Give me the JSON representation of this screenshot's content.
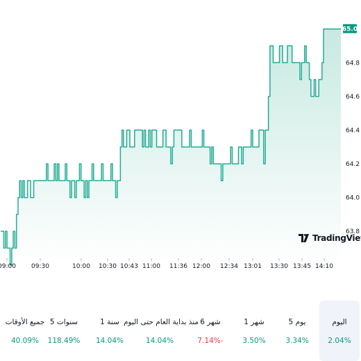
{
  "chart_data": {
    "type": "area",
    "x_ticks": [
      "09:00",
      "09:30",
      "10:00",
      "10:30",
      "10:43",
      "11:00",
      "11:36",
      "12:00",
      "12:34",
      "13:01",
      "13:30",
      "13:45",
      "14:10"
    ],
    "y_ticks": [
      "63.8",
      "64.0",
      "64.2",
      "64.4",
      "64.6",
      "64.8",
      "65.0"
    ],
    "ylim": [
      63.64,
      65.04
    ],
    "last_price": "65.0",
    "values": [
      63.8,
      63.8,
      63.7,
      63.8,
      63.7,
      63.7,
      63.6,
      63.7,
      63.8,
      63.7,
      63.9,
      64.0,
      64.1,
      64.0,
      64.1,
      64.0,
      64.0,
      64.1,
      64.1,
      64.0,
      64.0,
      64.1,
      64.1,
      64.1,
      64.1,
      64.1,
      64.1,
      64.1,
      64.1,
      64.2,
      64.1,
      64.1,
      64.1,
      64.1,
      64.2,
      64.1,
      64.2,
      64.1,
      64.1,
      64.1,
      64.1,
      64.2,
      64.1,
      64.1,
      64.0,
      64.1,
      64.1,
      64.0,
      64.1,
      64.1,
      64.2,
      64.1,
      64.1,
      64.0,
      64.1,
      64.0,
      64.1,
      64.1,
      64.2,
      64.1,
      64.1,
      64.1,
      64.1,
      64.1,
      64.2,
      64.1,
      64.1,
      64.1,
      64.1,
      64.1,
      64.2,
      64.1,
      64.1,
      64.0,
      64.1,
      64.1,
      64.3,
      64.4,
      64.3,
      64.3,
      64.4,
      64.4,
      64.3,
      64.3,
      64.3,
      64.4,
      64.4,
      64.4,
      64.4,
      64.4,
      64.3,
      64.4,
      64.3,
      64.3,
      64.4,
      64.3,
      64.4,
      64.4,
      64.4,
      64.3,
      64.3,
      64.3,
      64.3,
      64.4,
      64.4,
      64.3,
      64.3,
      64.3,
      64.2,
      64.3,
      64.4,
      64.4,
      64.4,
      64.4,
      64.4,
      64.3,
      64.3,
      64.3,
      64.3,
      64.3,
      64.4,
      64.3,
      64.3,
      64.3,
      64.3,
      64.3,
      64.3,
      64.3,
      64.4,
      64.3,
      64.3,
      64.3,
      64.3,
      64.2,
      64.3,
      64.2,
      64.2,
      64.2,
      64.2,
      64.2,
      64.1,
      64.2,
      64.2,
      64.2,
      64.2,
      64.2,
      64.3,
      64.2,
      64.2,
      64.2,
      64.2,
      64.3,
      64.3,
      64.2,
      64.3,
      64.3,
      64.3,
      64.3,
      64.3,
      64.4,
      64.3,
      64.3,
      64.3,
      64.3,
      64.4,
      64.4,
      64.4,
      64.2,
      64.4,
      64.4,
      64.6,
      64.9,
      64.9,
      64.8,
      64.8,
      64.8,
      64.8,
      64.9,
      64.9,
      64.8,
      64.8,
      64.8,
      64.9,
      64.9,
      64.9,
      64.8,
      64.8,
      64.8,
      64.8,
      64.8,
      64.7,
      64.8,
      64.8,
      64.9,
      64.8,
      64.8,
      64.7,
      64.6,
      64.6,
      64.7,
      64.6,
      64.6,
      64.7,
      64.7,
      64.8,
      65.0,
      65.0,
      65.0,
      65.0,
      65.0,
      65.0,
      65.0,
      65.0,
      65.0,
      65.0,
      65.0,
      65.0
    ],
    "colors": {
      "line": "#22ab94",
      "fill_top": "#c7e9e1",
      "fill_bottom": "#ffffff",
      "tag": "#089981"
    }
  },
  "brand": {
    "name": "TradingView",
    "logo_icon": "tradingview-logo-icon"
  },
  "periods": [
    {
      "label": "جميع الأوقات",
      "value": "40.09%",
      "trend": "up"
    },
    {
      "label": "5 سنوات",
      "value": "118.49%",
      "trend": "up"
    },
    {
      "label": "1 سنة",
      "value": "14.04%",
      "trend": "up"
    },
    {
      "label": "منذ بداية العام حتى اليوم",
      "value": "14.04%",
      "trend": "up"
    },
    {
      "label": "6 شهر",
      "value": "7.14%-",
      "trend": "down"
    },
    {
      "label": "1 شهر",
      "value": "3.50%",
      "trend": "up"
    },
    {
      "label": "5 يوم",
      "value": "3.34%",
      "trend": "up"
    },
    {
      "label": "اليوم",
      "value": "2.04%",
      "trend": "up",
      "active": true
    }
  ],
  "status_colors": {
    "up": "#089981",
    "down": "#f23645"
  }
}
